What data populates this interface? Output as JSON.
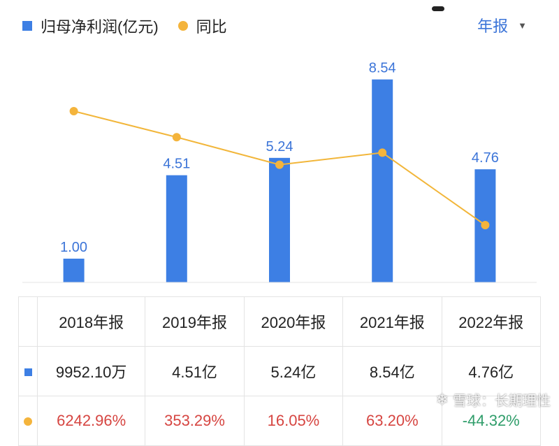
{
  "legend": {
    "bar_series": "归母净利润(亿元)",
    "line_series": "同比"
  },
  "period_selector": {
    "label": "年报",
    "caret": "▼"
  },
  "chart_data": {
    "type": "bar",
    "categories": [
      "2018年报",
      "2019年报",
      "2020年报",
      "2021年报",
      "2022年报"
    ],
    "series": [
      {
        "name": "归母净利润(亿元)",
        "type": "bar",
        "values": [
          1.0,
          4.51,
          5.24,
          8.54,
          4.76
        ],
        "labels": [
          "1.00",
          "4.51",
          "5.24",
          "8.54",
          "4.76"
        ],
        "color": "#3d7fe4"
      },
      {
        "name": "同比",
        "type": "line",
        "values": [
          6242.96,
          353.29,
          16.05,
          63.2,
          -44.32
        ],
        "color": "#f4b43c"
      }
    ]
  },
  "table": {
    "headers": [
      "2018年报",
      "2019年报",
      "2020年报",
      "2021年报",
      "2022年报"
    ],
    "rows": [
      {
        "values": [
          "9952.10万",
          "4.51亿",
          "5.24亿",
          "8.54亿",
          "4.76亿"
        ]
      },
      {
        "values": [
          "6242.96%",
          "353.29%",
          "16.05%",
          "63.20%",
          "-44.32%"
        ]
      }
    ]
  },
  "watermark": {
    "text": "雪球：长期理性",
    "icon": "snowball-icon"
  }
}
